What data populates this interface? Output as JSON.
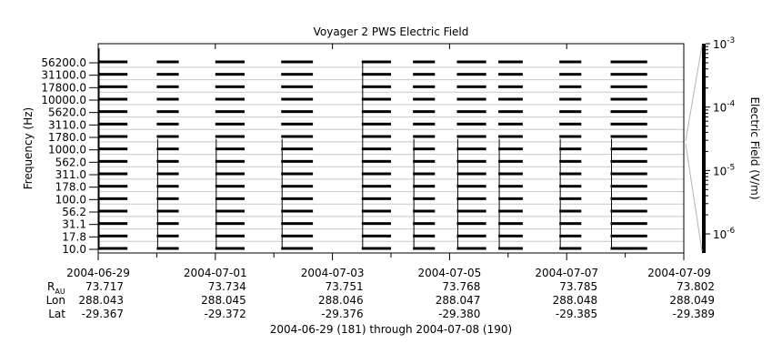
{
  "chart_data": {
    "type": "heatmap",
    "title": "Voyager 2 PWS Electric Field",
    "ylabel": "Frequency (Hz)",
    "colorbar_label": "Electric Field (V/m)",
    "colorbar_ticks": [
      {
        "exp": "-3",
        "value": 0.001
      },
      {
        "exp": "-4",
        "value": 0.0001
      },
      {
        "exp": "-5",
        "value": 1e-05
      },
      {
        "exp": "-6",
        "value": 1e-06
      }
    ],
    "colorbar_range": [
      5e-07,
      0.001
    ],
    "colorbar_scale": "log",
    "frequency_channels": [
      "56200.0",
      "31100.0",
      "17800.0",
      "10000.0",
      "5620.0",
      "3110.0",
      "1780.0",
      "1000.0",
      "562.0",
      "311.0",
      "178.0",
      "100.0",
      "56.2",
      "31.1",
      "17.8",
      "10.0"
    ],
    "x_range": [
      "2004-06-29",
      "2004-07-09"
    ],
    "x_ticks": [
      {
        "date": "2004-06-29",
        "label": "2004-06-29",
        "rau": "73.717",
        "lon": "288.043",
        "lat": "-29.367"
      },
      {
        "date": "2004-07-01",
        "label": "2004-07-01",
        "rau": "73.734",
        "lon": "288.045",
        "lat": "-29.372"
      },
      {
        "date": "2004-07-03",
        "label": "2004-07-03",
        "rau": "73.751",
        "lon": "288.046",
        "lat": "-29.376"
      },
      {
        "date": "2004-07-05",
        "label": "2004-07-05",
        "rau": "73.768",
        "lon": "288.047",
        "lat": "-29.380"
      },
      {
        "date": "2004-07-07",
        "label": "2004-07-07",
        "rau": "73.785",
        "lon": "288.048",
        "lat": "-29.385"
      },
      {
        "date": "2004-07-09",
        "label": "2004-07-09",
        "rau": "73.802",
        "lon": "288.049",
        "lat": "-29.389"
      }
    ],
    "x_minor_ticks": [
      "2004-06-30",
      "2004-07-02",
      "2004-07-04",
      "2004-07-06",
      "2004-07-08"
    ],
    "data_segments": [
      {
        "start": "2004-06-29T00:00",
        "end": "2004-06-29T12:00"
      },
      {
        "start": "2004-06-30T00:00",
        "end": "2004-06-30T09:00"
      },
      {
        "start": "2004-07-01T00:00",
        "end": "2004-07-01T12:00"
      },
      {
        "start": "2004-07-02T03:00",
        "end": "2004-07-02T16:00"
      },
      {
        "start": "2004-07-03T12:00",
        "end": "2004-07-04T00:00"
      },
      {
        "start": "2004-07-04T09:00",
        "end": "2004-07-04T18:00"
      },
      {
        "start": "2004-07-05T03:00",
        "end": "2004-07-05T15:00"
      },
      {
        "start": "2004-07-05T20:00",
        "end": "2004-07-06T06:00"
      },
      {
        "start": "2004-07-06T21:00",
        "end": "2004-07-07T06:00"
      },
      {
        "start": "2004-07-07T18:00",
        "end": "2004-07-08T09:00"
      }
    ],
    "grid": true
  },
  "footer": {
    "rau_label": "R",
    "rau_sub": "AU",
    "lon_label": "Lon",
    "lat_label": "Lat",
    "range_text": "2004-06-29 (181) through 2004-07-08 (190)"
  },
  "colors": {
    "band": "#000000",
    "grid": "#c8c8c8",
    "colorbar_link": "#b4b4b4"
  }
}
